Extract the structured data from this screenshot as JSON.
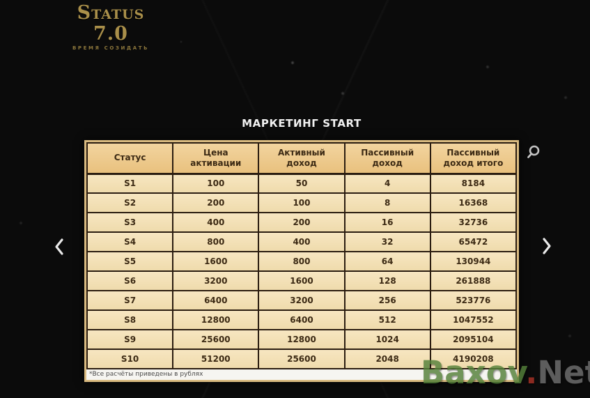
{
  "logo": {
    "title": "Status 7.0",
    "tagline": "ВРЕМЯ СОЗИДАТЬ"
  },
  "page_title": "МАРКЕТИНГ START",
  "table": {
    "headers": [
      "Статус",
      "Цена активации",
      "Активный доход",
      "Пассивный доход",
      "Пассивный доход итого"
    ],
    "rows": [
      [
        "S1",
        "100",
        "50",
        "4",
        "8184"
      ],
      [
        "S2",
        "200",
        "100",
        "8",
        "16368"
      ],
      [
        "S3",
        "400",
        "200",
        "16",
        "32736"
      ],
      [
        "S4",
        "800",
        "400",
        "32",
        "65472"
      ],
      [
        "S5",
        "1600",
        "800",
        "64",
        "130944"
      ],
      [
        "S6",
        "3200",
        "1600",
        "128",
        "261888"
      ],
      [
        "S7",
        "6400",
        "3200",
        "256",
        "523776"
      ],
      [
        "S8",
        "12800",
        "6400",
        "512",
        "1047552"
      ],
      [
        "S9",
        "25600",
        "12800",
        "1024",
        "2095104"
      ],
      [
        "S10",
        "51200",
        "25600",
        "2048",
        "4190208"
      ]
    ],
    "footnote": "*Все расчёты приведены в рублях"
  },
  "icons": {
    "prev": "chevron-left-icon",
    "next": "chevron-right-icon",
    "search": "magnifier-icon"
  },
  "watermark": {
    "part1": "Baxov",
    "part2": ".",
    "part3": "Net"
  },
  "colors": {
    "background": "#0b0b0b",
    "logo_gold": "#a98f4a",
    "table_header_bg": "#ecc98e",
    "table_row_bg": "#f3e1b6",
    "table_border": "#2a1c10",
    "table_frame": "#d9ba80",
    "footnote_bg": "#f6f5f1",
    "title_text": "#f2f2f2",
    "watermark_green": "#55813a",
    "watermark_red": "#a93226",
    "watermark_gray": "#6f6f6f"
  }
}
